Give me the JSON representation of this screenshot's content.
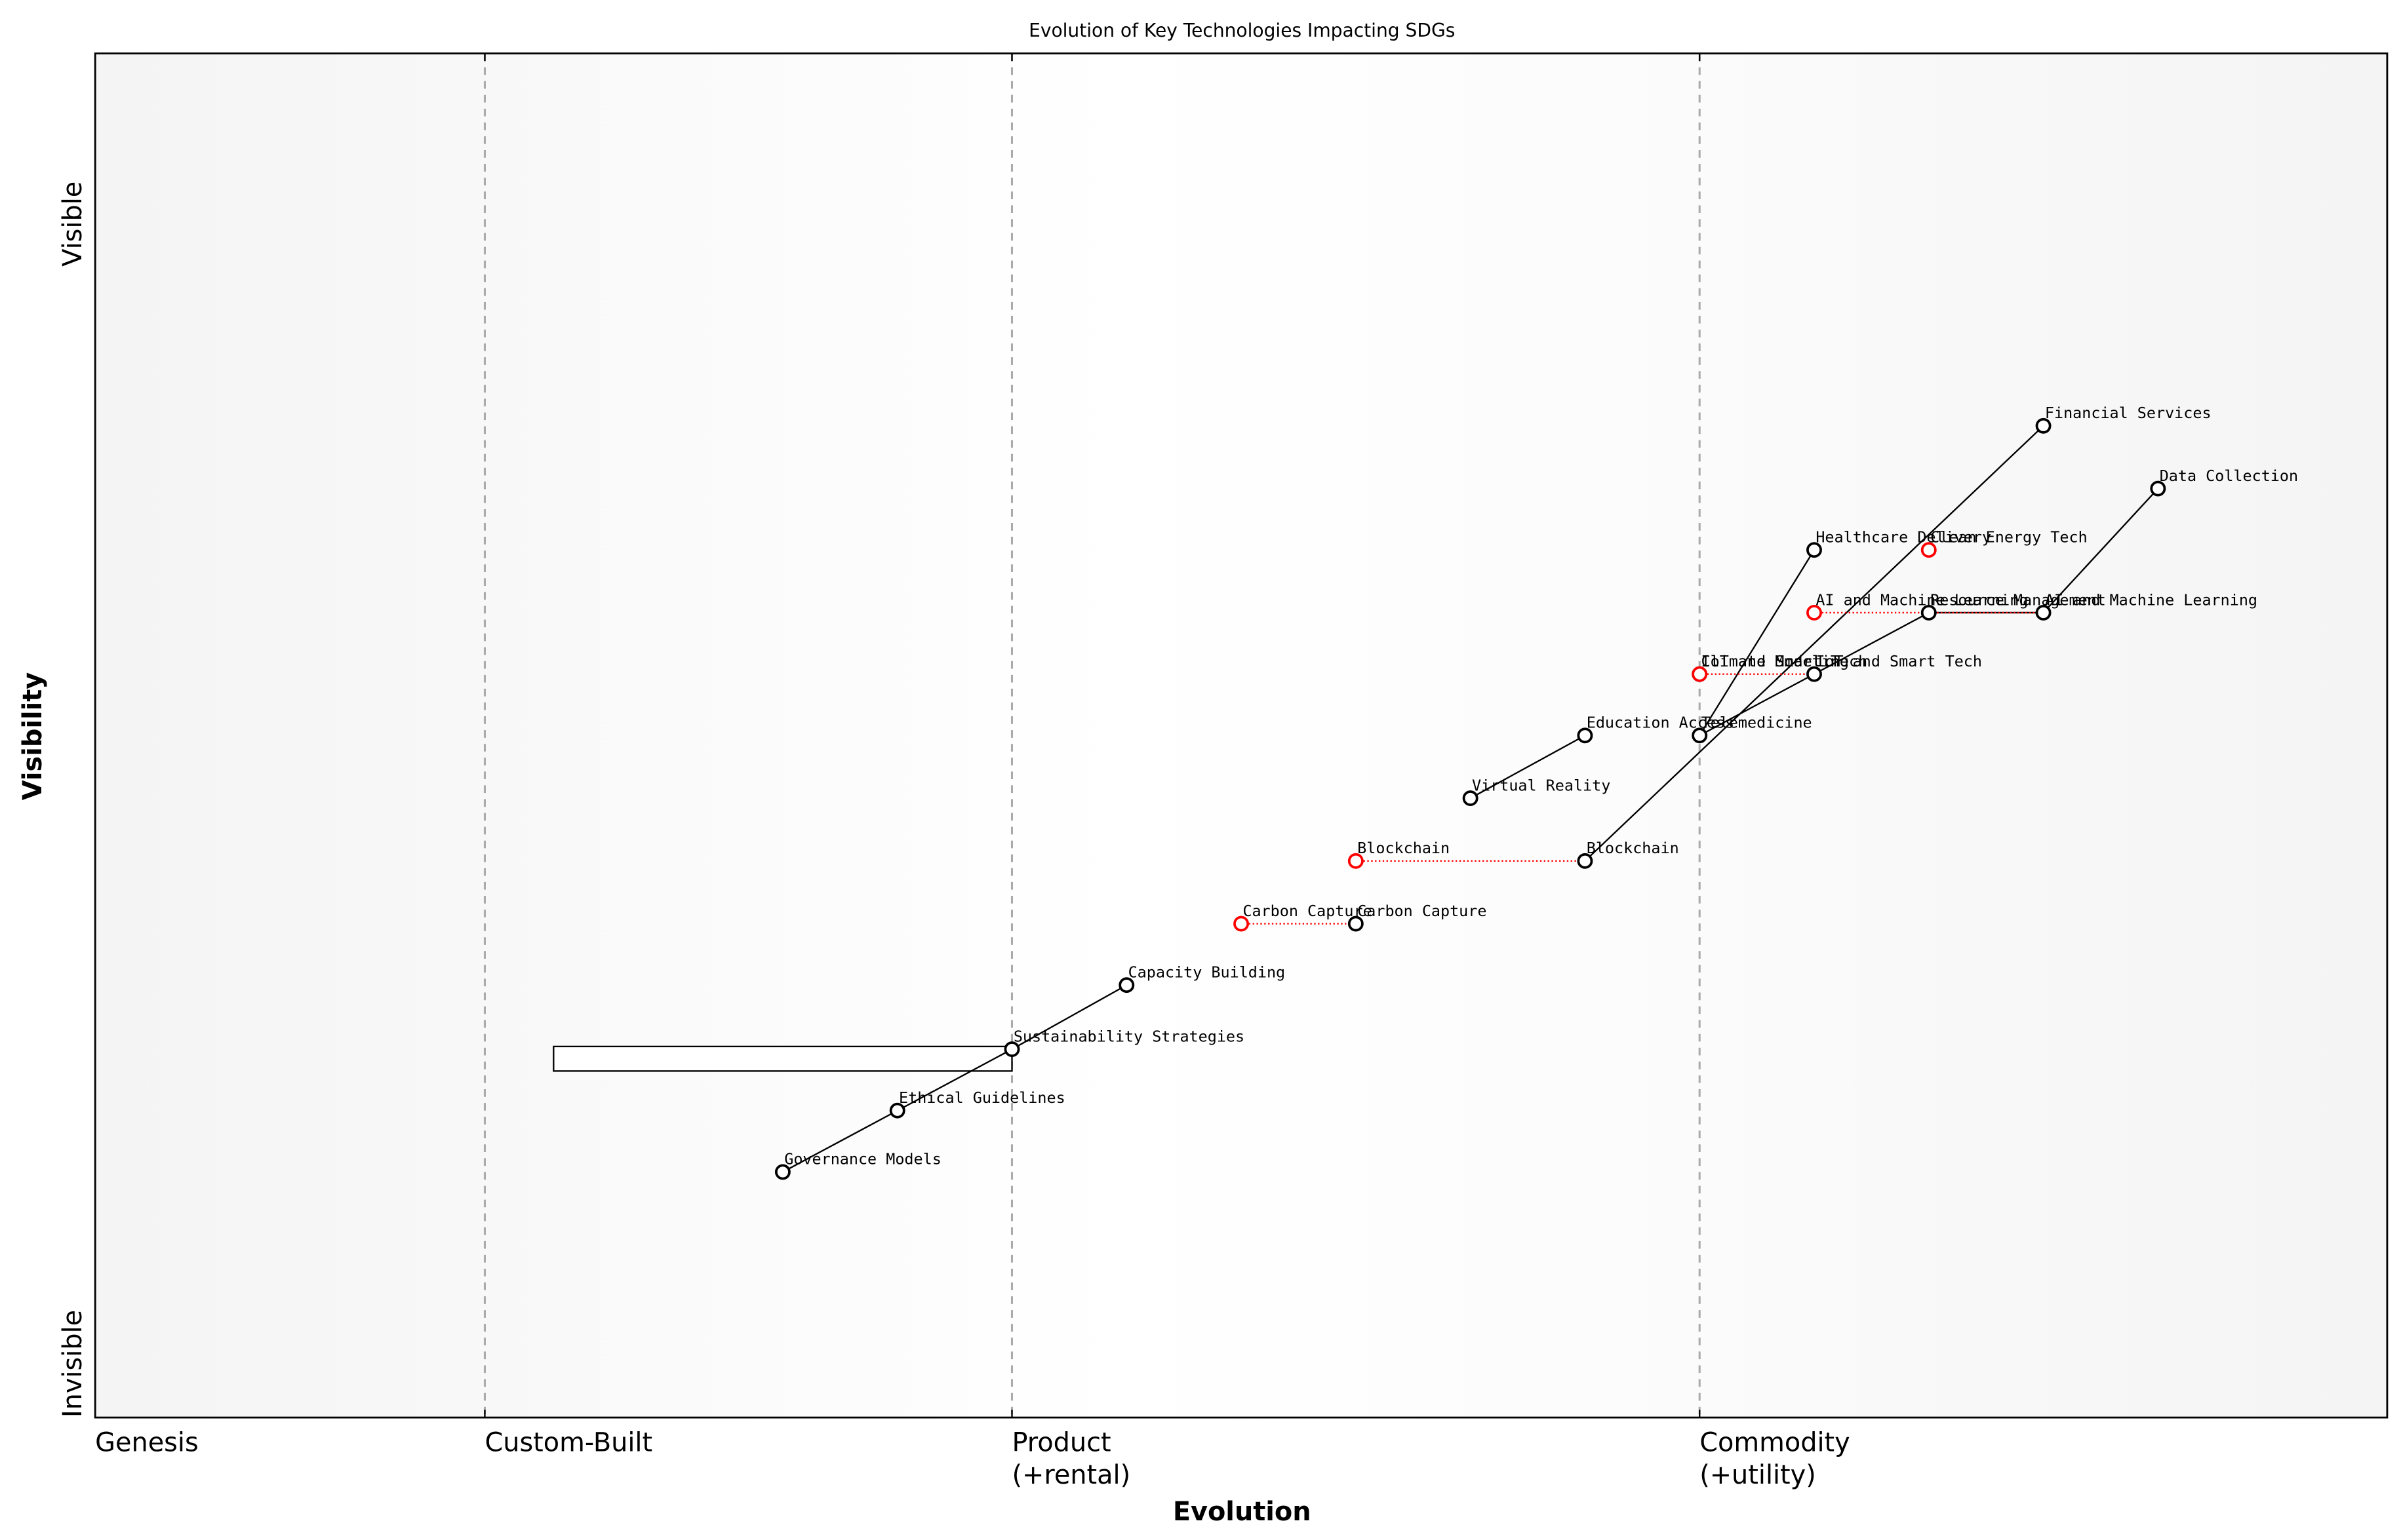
{
  "chart_data": {
    "type": "wardley",
    "title": "Evolution of Key Technologies Impacting SDGs",
    "xlabel": "Evolution",
    "ylabel": "Visibility",
    "xlim": [
      0,
      1
    ],
    "ylim": [
      0,
      1
    ],
    "xticks": [
      {
        "value": 0,
        "label": "Genesis"
      },
      {
        "value": 0.17,
        "label": "Custom-Built"
      },
      {
        "value": 0.4,
        "label": "Product\n(+rental)"
      },
      {
        "value": 0.7,
        "label": "Commodity\n(+utility)"
      }
    ],
    "yticks": [
      {
        "value": 0,
        "label": "Invisible"
      },
      {
        "value": 0.875,
        "label": "Visible"
      }
    ],
    "nodes": [
      {
        "name": "Governance Models",
        "x": 0.3,
        "y": 0.18,
        "color": "black"
      },
      {
        "name": "Ethical Guidelines",
        "x": 0.35,
        "y": 0.225,
        "color": "black"
      },
      {
        "name": "Sustainability Strategies",
        "x": 0.4,
        "y": 0.27,
        "color": "black"
      },
      {
        "name": "Capacity Building",
        "x": 0.45,
        "y": 0.317,
        "color": "black"
      },
      {
        "name": "Carbon Capture",
        "x": 0.5,
        "y": 0.362,
        "color": "red"
      },
      {
        "name": "Carbon Capture",
        "x": 0.55,
        "y": 0.362,
        "color": "black"
      },
      {
        "name": "Blockchain",
        "x": 0.55,
        "y": 0.408,
        "color": "red"
      },
      {
        "name": "Blockchain",
        "x": 0.65,
        "y": 0.408,
        "color": "black"
      },
      {
        "name": "Virtual Reality",
        "x": 0.6,
        "y": 0.454,
        "color": "black"
      },
      {
        "name": "Education Access",
        "x": 0.65,
        "y": 0.5,
        "color": "black"
      },
      {
        "name": "Telemedicine",
        "x": 0.7,
        "y": 0.5,
        "color": "black"
      },
      {
        "name": "Climate Modeling",
        "x": 0.7,
        "y": 0.545,
        "color": "black"
      },
      {
        "name": "IoT and Smart Tech",
        "x": 0.7,
        "y": 0.545,
        "color": "red"
      },
      {
        "name": "IoT and Smart Tech",
        "x": 0.75,
        "y": 0.545,
        "color": "black"
      },
      {
        "name": "AI and Machine Learning",
        "x": 0.75,
        "y": 0.59,
        "color": "red"
      },
      {
        "name": "Resource Management",
        "x": 0.8,
        "y": 0.59,
        "color": "black"
      },
      {
        "name": "AI and Machine Learning",
        "x": 0.85,
        "y": 0.59,
        "color": "black"
      },
      {
        "name": "Healthcare Delivery",
        "x": 0.75,
        "y": 0.636,
        "color": "black"
      },
      {
        "name": "Clean Energy Tech",
        "x": 0.8,
        "y": 0.636,
        "color": "red"
      },
      {
        "name": "Financial Services",
        "x": 0.85,
        "y": 0.727,
        "color": "black"
      },
      {
        "name": "Data Collection",
        "x": 0.9,
        "y": 0.681,
        "color": "black"
      }
    ],
    "links": [
      [
        0,
        1
      ],
      [
        1,
        2
      ],
      [
        2,
        3
      ],
      [
        7,
        19
      ],
      [
        8,
        9
      ],
      [
        10,
        17
      ],
      [
        10,
        13
      ],
      [
        13,
        15
      ],
      [
        15,
        16
      ],
      [
        16,
        20
      ]
    ],
    "evolve": [
      [
        4,
        5
      ],
      [
        6,
        7
      ],
      [
        12,
        13
      ],
      [
        14,
        16
      ]
    ],
    "pipeline": {
      "x": [
        0.2,
        0.4
      ],
      "y": [
        0.254,
        0.272
      ]
    }
  }
}
